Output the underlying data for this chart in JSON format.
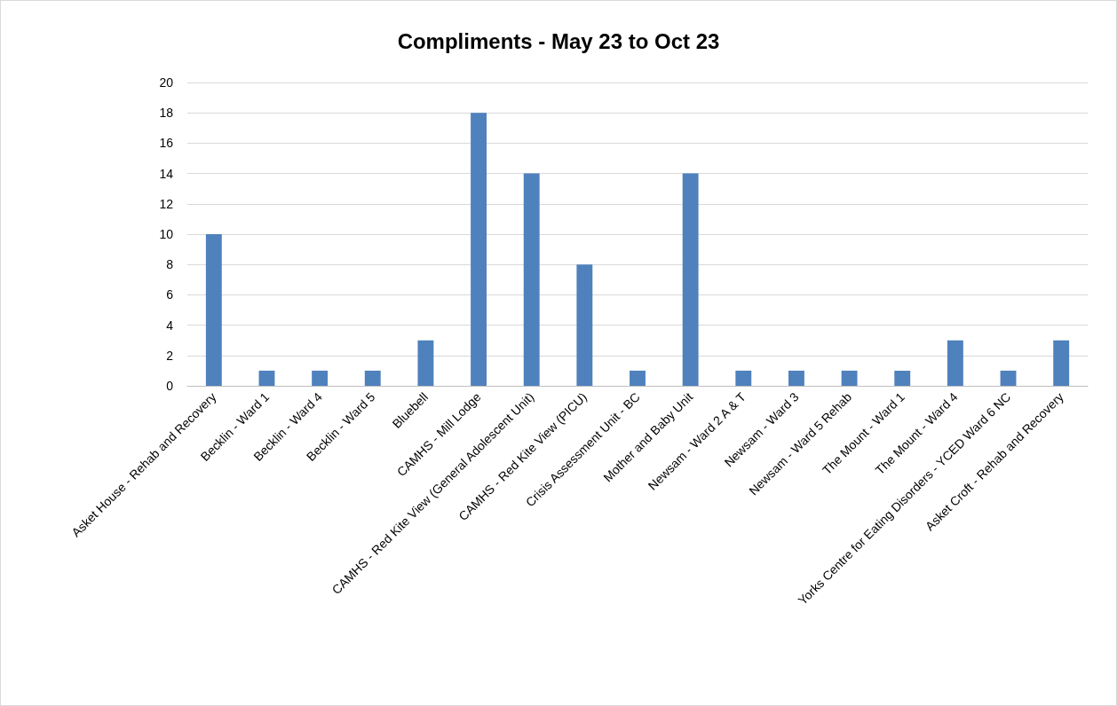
{
  "chart_data": {
    "type": "bar",
    "title": "Compliments - May 23 to Oct 23",
    "categories": [
      "Asket House - Rehab and Recovery",
      "Becklin - Ward 1",
      "Becklin - Ward 4",
      "Becklin - Ward 5",
      "Bluebell",
      "CAMHS - Mill Lodge",
      "CAMHS - Red Kite View (General Adolescent Unit)",
      "CAMHS - Red Kite View (PICU)",
      "Crisis Assessment Unit - BC",
      "Mother and Baby Unit",
      "Newsam - Ward 2 A & T",
      "Newsam - Ward 3",
      "Newsam - Ward 5 Rehab",
      "The Mount - Ward 1",
      "The Mount - Ward 4",
      "Yorks Centre for Eating Disorders - YCED Ward 6 NC",
      "Asket Croft - Rehab and Recovery"
    ],
    "values": [
      10,
      1,
      1,
      1,
      3,
      18,
      14,
      8,
      1,
      14,
      1,
      1,
      1,
      1,
      3,
      1,
      3
    ],
    "color": "#4f81bd",
    "ylim": [
      0,
      20
    ],
    "yticks": [
      0,
      2,
      4,
      6,
      8,
      10,
      12,
      14,
      16,
      18,
      20
    ],
    "grid": "y"
  }
}
